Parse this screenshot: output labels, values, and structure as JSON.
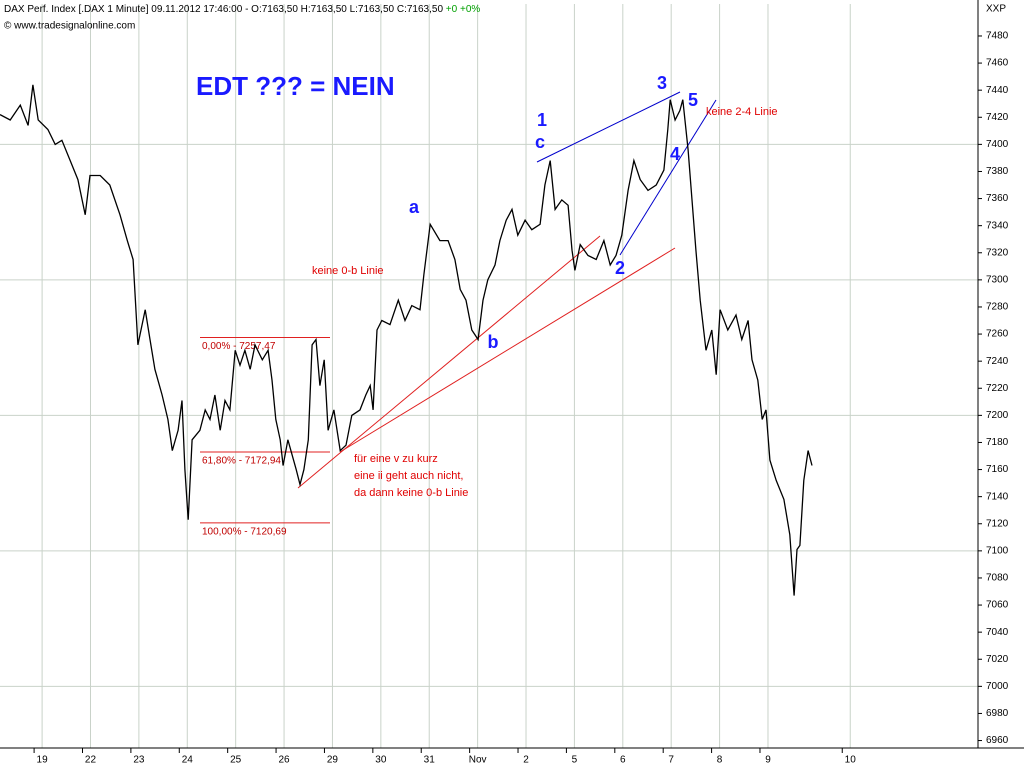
{
  "chart_data": {
    "type": "line",
    "title": "DAX Perf. Index [.DAX  1 Minute] 09.11.2012 17:46:00 - O:7163,50 H:7163,50 L:7163,50 C:7163,50",
    "change": "+0 +0%",
    "source": "© www.tradesignalonline.com",
    "axis_name": "XXP",
    "color": "#000000",
    "grid": true,
    "x": [
      -0.87,
      -0.66,
      -0.45,
      -0.29,
      -0.19,
      -0.08,
      0.12,
      0.27,
      0.41,
      0.58,
      0.74,
      0.89,
      0.99,
      1.2,
      1.4,
      1.61,
      1.76,
      1.88,
      1.98,
      2.13,
      2.23,
      2.33,
      2.48,
      2.6,
      2.69,
      2.81,
      2.89,
      2.95,
      3.02,
      3.1,
      3.26,
      3.37,
      3.47,
      3.57,
      3.68,
      3.78,
      3.88,
      3.99,
      4.09,
      4.19,
      4.3,
      4.4,
      4.55,
      4.67,
      4.75,
      4.83,
      4.92,
      4.98,
      5.08,
      5.25,
      5.33,
      5.41,
      5.5,
      5.58,
      5.66,
      5.74,
      5.83,
      5.91,
      6.03,
      6.16,
      6.28,
      6.4,
      6.57,
      6.69,
      6.78,
      6.84,
      6.92,
      7.02,
      7.19,
      7.36,
      7.5,
      7.64,
      7.81,
      7.89,
      8.02,
      8.22,
      8.39,
      8.53,
      8.64,
      8.76,
      8.88,
      9.01,
      9.11,
      9.21,
      9.36,
      9.46,
      9.59,
      9.71,
      9.83,
      9.98,
      10.12,
      10.29,
      10.39,
      10.5,
      10.6,
      10.74,
      10.87,
      10.95,
      11.01,
      11.12,
      11.28,
      11.45,
      11.61,
      11.74,
      11.86,
      11.98,
      12.11,
      12.23,
      12.36,
      12.52,
      12.69,
      12.85,
      12.93,
      12.98,
      13.08,
      13.18,
      13.24,
      13.35,
      13.43,
      13.51,
      13.6,
      13.72,
      13.84,
      13.93,
      14.01,
      14.17,
      14.34,
      14.46,
      14.59,
      14.67,
      14.79,
      14.88,
      14.96,
      15.04,
      15.17,
      15.33,
      15.45,
      15.54,
      15.6,
      15.66,
      15.74,
      15.83,
      15.91
    ],
    "values": [
      7422,
      7418,
      7429,
      7414,
      7444,
      7418,
      7411,
      7400,
      7403,
      7388,
      7374,
      7348,
      7377,
      7377,
      7370,
      7348,
      7329,
      7315,
      7252,
      7278,
      7256,
      7234,
      7215,
      7197,
      7174,
      7189,
      7211,
      7160,
      7123,
      7182,
      7189,
      7204,
      7197,
      7215,
      7189,
      7211,
      7204,
      7248,
      7237,
      7248,
      7234,
      7252,
      7241,
      7248,
      7226,
      7197,
      7182,
      7163,
      7182,
      7160,
      7149,
      7160,
      7182,
      7252,
      7256,
      7222,
      7241,
      7189,
      7204,
      7174,
      7178,
      7200,
      7204,
      7215,
      7222,
      7204,
      7263,
      7270,
      7267,
      7285,
      7270,
      7281,
      7278,
      7304,
      7341,
      7329,
      7329,
      7315,
      7293,
      7285,
      7263,
      7256,
      7285,
      7300,
      7311,
      7329,
      7344,
      7352,
      7333,
      7344,
      7337,
      7341,
      7370,
      7388,
      7352,
      7359,
      7355,
      7322,
      7307,
      7326,
      7318,
      7315,
      7329,
      7311,
      7318,
      7333,
      7366,
      7388,
      7374,
      7366,
      7370,
      7381,
      7411,
      7433,
      7418,
      7425,
      7433,
      7396,
      7359,
      7322,
      7285,
      7248,
      7263,
      7230,
      7278,
      7263,
      7274,
      7256,
      7270,
      7241,
      7226,
      7197,
      7204,
      7167,
      7152,
      7138,
      7112,
      7067,
      7101,
      7104,
      7152,
      7174,
      7163
    ],
    "xlim": [
      -0.87,
      19.34
    ],
    "xticks": [
      {
        "value": 0,
        "label": "19"
      },
      {
        "value": 1,
        "label": "22"
      },
      {
        "value": 2,
        "label": "23"
      },
      {
        "value": 3,
        "label": "24"
      },
      {
        "value": 4,
        "label": "25"
      },
      {
        "value": 5,
        "label": "26"
      },
      {
        "value": 6,
        "label": "29"
      },
      {
        "value": 7,
        "label": "30"
      },
      {
        "value": 8,
        "label": "31"
      },
      {
        "value": 9,
        "label": "Nov"
      },
      {
        "value": 10,
        "label": "2"
      },
      {
        "value": 11,
        "label": "5"
      },
      {
        "value": 12,
        "label": "6"
      },
      {
        "value": 13,
        "label": "7"
      },
      {
        "value": 14,
        "label": "8"
      },
      {
        "value": 15,
        "label": "9"
      },
      {
        "value": 16.7,
        "label": "10"
      }
    ],
    "ylim": [
      6954.5,
      7503.6
    ],
    "yticks": [
      6960,
      6980,
      7000,
      7020,
      7040,
      7060,
      7080,
      7100,
      7120,
      7140,
      7160,
      7180,
      7200,
      7220,
      7240,
      7260,
      7280,
      7300,
      7320,
      7340,
      7360,
      7380,
      7400,
      7420,
      7440,
      7460,
      7480
    ],
    "fib_levels": [
      {
        "value": 7257.47,
        "label": "0,00% - 7257,47"
      },
      {
        "value": 7172.94,
        "label": "61,80% - 7172,94"
      },
      {
        "value": 7120.69,
        "label": "100,00% - 7120,69"
      }
    ],
    "annotations": [
      "EDT ??? = NEIN",
      "keine 0-b Linie",
      "keine 2-4  Linie",
      "für eine v zu kurz",
      "eine ii geht auch nicht,",
      "da dann keine 0-b Linie"
    ],
    "wave_labels": [
      "1",
      "c",
      "a",
      "b",
      "2",
      "3",
      "4",
      "5"
    ]
  }
}
